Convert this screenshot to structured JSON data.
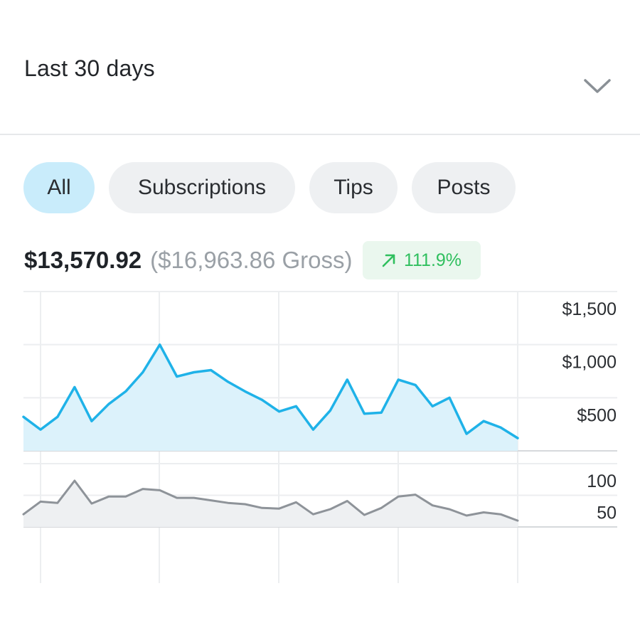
{
  "period": {
    "label": "Last 30 days"
  },
  "filters": [
    {
      "label": "All",
      "active": true
    },
    {
      "label": "Subscriptions",
      "active": false
    },
    {
      "label": "Tips",
      "active": false
    },
    {
      "label": "Posts",
      "active": false
    }
  ],
  "summary": {
    "net": "$13,570.92",
    "gross": "($16,963.86 Gross)",
    "change": "111.9%",
    "change_direction": "up"
  },
  "colors": {
    "accent": "#1fb2e8",
    "accent_fill": "#dcf2fb",
    "secondary": "#8e9399",
    "secondary_fill": "#eef0f2",
    "active_chip": "#c9ecfb",
    "positive": "#2fbf5e"
  },
  "chart_data": [
    {
      "type": "area",
      "title": "",
      "ylim": [
        0,
        1500
      ],
      "yticks": [
        "$1,500",
        "$1,000",
        "$500"
      ],
      "ytick_values": [
        1500,
        1000,
        500
      ],
      "x": [
        1,
        2,
        3,
        4,
        5,
        6,
        7,
        8,
        9,
        10,
        11,
        12,
        13,
        14,
        15,
        16,
        17,
        18,
        19,
        20,
        21,
        22,
        23,
        24,
        25,
        26,
        27,
        28,
        29,
        30
      ],
      "series": [
        {
          "values": [
            320,
            200,
            320,
            600,
            280,
            440,
            560,
            740,
            1000,
            700,
            740,
            760,
            650,
            560,
            480,
            370,
            420,
            200,
            380,
            670,
            350,
            360,
            670,
            620,
            420,
            500,
            160,
            280,
            220,
            120
          ]
        }
      ],
      "grid": true
    },
    {
      "type": "area",
      "title": "",
      "ylim": [
        0,
        100
      ],
      "yticks": [
        "100",
        "50"
      ],
      "ytick_values": [
        100,
        50
      ],
      "x": [
        1,
        2,
        3,
        4,
        5,
        6,
        7,
        8,
        9,
        10,
        11,
        12,
        13,
        14,
        15,
        16,
        17,
        18,
        19,
        20,
        21,
        22,
        23,
        24,
        25,
        26,
        27,
        28,
        29,
        30
      ],
      "series": [
        {
          "values": [
            20,
            40,
            38,
            73,
            37,
            48,
            48,
            60,
            58,
            46,
            46,
            42,
            38,
            36,
            30,
            29,
            39,
            20,
            28,
            41,
            19,
            30,
            48,
            51,
            34,
            28,
            18,
            23,
            20,
            10
          ]
        }
      ],
      "grid": true
    }
  ]
}
